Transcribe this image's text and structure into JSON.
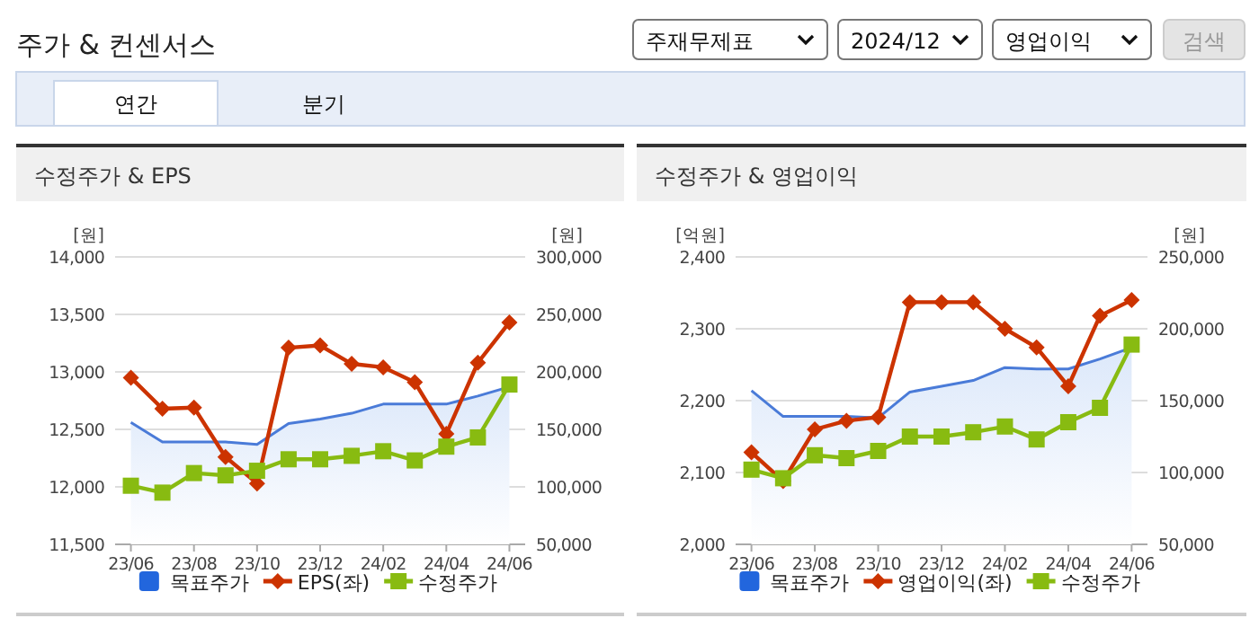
{
  "chart_data": [
    {
      "type": "other",
      "title": "주가 & 컨센서스",
      "annotations": [
        "주재무제표",
        "2024/12",
        "영업이익",
        "검색",
        "연간",
        "분기"
      ]
    },
    {
      "type": "line",
      "title": "수정주가 & EPS",
      "ylabel": "[원]",
      "y2label": "[원]",
      "categories": [
        "23/06",
        null,
        "23/08",
        null,
        "23/10",
        null,
        "23/12",
        null,
        "24/02",
        null,
        "24/04",
        null,
        "24/06"
      ],
      "series": [
        {
          "name": "목표주가",
          "type": "area",
          "axis": "y2",
          "color": "#4a7bd8",
          "values": [
            156000,
            139000,
            139000,
            139000,
            137000,
            155000,
            159000,
            164000,
            172000,
            172000,
            172000,
            179000,
            187000
          ]
        },
        {
          "name": "EPS(좌)",
          "type": "line",
          "axis": "y",
          "color": "#cc3300",
          "marker": "diamond",
          "values": [
            12950,
            12680,
            12690,
            12260,
            12030,
            13210,
            13230,
            13070,
            13040,
            12910,
            12460,
            13080,
            13430
          ]
        },
        {
          "name": "수정주가",
          "type": "line",
          "axis": "y2",
          "color": "#88bb11",
          "marker": "square",
          "values": [
            101000,
            95000,
            112000,
            110000,
            114000,
            124000,
            124000,
            127000,
            131000,
            123000,
            135000,
            143000,
            189000
          ]
        }
      ],
      "ylim": [
        11500,
        14000
      ],
      "yticks": [
        {
          "value": 11500,
          "label": "11,500"
        },
        {
          "value": 12000,
          "label": "12,000"
        },
        {
          "value": 12500,
          "label": "12,500"
        },
        {
          "value": 13000,
          "label": "13,000"
        },
        {
          "value": 13500,
          "label": "13,500"
        },
        {
          "value": 14000,
          "label": "14,000"
        }
      ],
      "y2lim": [
        50000,
        300000
      ],
      "y2ticks": [
        {
          "value": 50000,
          "label": "50,000"
        },
        {
          "value": 100000,
          "label": "100,000"
        },
        {
          "value": 150000,
          "label": "150,000"
        },
        {
          "value": 200000,
          "label": "200,000"
        },
        {
          "value": 250000,
          "label": "250,000"
        },
        {
          "value": 300000,
          "label": "300,000"
        }
      ],
      "grid": "y",
      "legend": "bottom"
    },
    {
      "type": "line",
      "title": "수정주가 & 영업이익",
      "ylabel": "[억원]",
      "y2label": "[원]",
      "categories": [
        "23/06",
        null,
        "23/08",
        null,
        "23/10",
        null,
        "23/12",
        null,
        "24/02",
        null,
        "24/04",
        null,
        "24/06"
      ],
      "series": [
        {
          "name": "목표주가",
          "type": "area",
          "axis": "y2",
          "color": "#4a7bd8",
          "values": [
            157000,
            139000,
            139000,
            139000,
            138000,
            156000,
            160000,
            164000,
            173000,
            172000,
            172000,
            179000,
            187000
          ]
        },
        {
          "name": "영업이익(좌)",
          "type": "line",
          "axis": "y",
          "color": "#cc3300",
          "marker": "diamond",
          "values": [
            2128,
            2088,
            2160,
            2172,
            2177,
            2337,
            2337,
            2337,
            2300,
            2274,
            2220,
            2318,
            2340
          ]
        },
        {
          "name": "수정주가",
          "type": "line",
          "axis": "y2",
          "color": "#88bb11",
          "marker": "square",
          "values": [
            102000,
            96000,
            112000,
            110000,
            115000,
            125000,
            125000,
            128000,
            132000,
            123000,
            135000,
            145000,
            189000
          ]
        }
      ],
      "ylim": [
        2000,
        2400
      ],
      "yticks": [
        {
          "value": 2000,
          "label": "2,000"
        },
        {
          "value": 2100,
          "label": "2,100"
        },
        {
          "value": 2200,
          "label": "2,200"
        },
        {
          "value": 2300,
          "label": "2,300"
        },
        {
          "value": 2400,
          "label": "2,400"
        }
      ],
      "y2lim": [
        50000,
        250000
      ],
      "y2ticks": [
        {
          "value": 50000,
          "label": "50,000"
        },
        {
          "value": 100000,
          "label": "100,000"
        },
        {
          "value": 150000,
          "label": "150,000"
        },
        {
          "value": 200000,
          "label": "200,000"
        },
        {
          "value": 250000,
          "label": "250,000"
        }
      ],
      "grid": "y",
      "legend": "bottom"
    }
  ]
}
